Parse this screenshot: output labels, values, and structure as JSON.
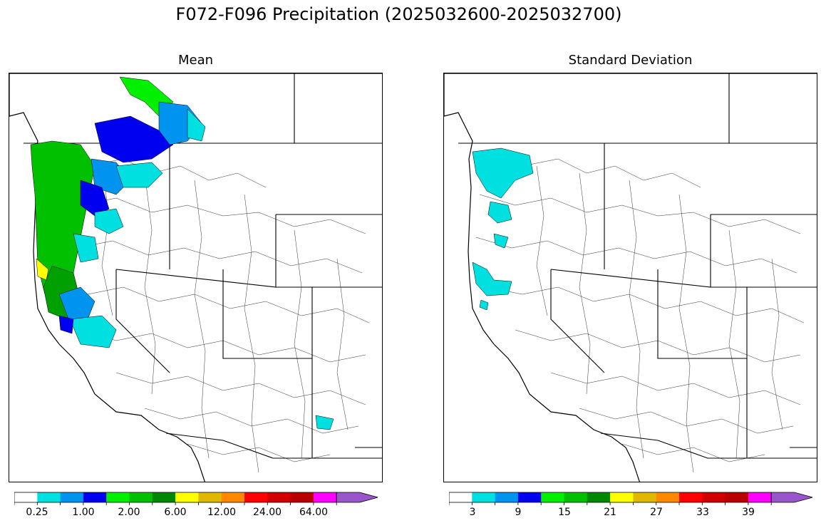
{
  "figure": {
    "title": "F072-F096 Precipitation (2025032600-2025032700)"
  },
  "panels": [
    {
      "id": "mean",
      "title": "Mean",
      "colorbar": {
        "colors": [
          "#ffffff",
          "#00e0e0",
          "#0094f0",
          "#0000f0",
          "#00f000",
          "#00c000",
          "#008800",
          "#ffff00",
          "#e0b800",
          "#ff8800",
          "#ff0000",
          "#d00000",
          "#b80000",
          "#ff00ff",
          "#9955cc"
        ],
        "tick_labels": [
          "0.25",
          "1.00",
          "2.00",
          "6.00",
          "12.00",
          "24.00",
          "64.00"
        ]
      }
    },
    {
      "id": "std",
      "title": "Standard Deviation",
      "colorbar": {
        "colors": [
          "#ffffff",
          "#00e0e0",
          "#0094f0",
          "#0000f0",
          "#00f000",
          "#00c000",
          "#008800",
          "#ffff00",
          "#e0b800",
          "#ff8800",
          "#ff0000",
          "#d00000",
          "#b80000",
          "#ff00ff",
          "#9955cc"
        ],
        "tick_labels": [
          "3",
          "9",
          "15",
          "21",
          "27",
          "33",
          "39"
        ]
      }
    }
  ]
}
